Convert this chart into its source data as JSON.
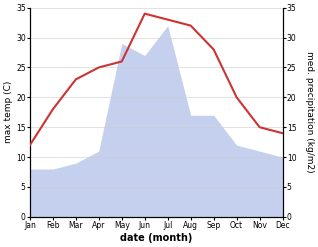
{
  "months": [
    "Jan",
    "Feb",
    "Mar",
    "Apr",
    "May",
    "Jun",
    "Jul",
    "Aug",
    "Sep",
    "Oct",
    "Nov",
    "Dec"
  ],
  "temperature": [
    12,
    18,
    23,
    25,
    26,
    34,
    33,
    32,
    28,
    20,
    15,
    14
  ],
  "precipitation": [
    8,
    8,
    9,
    11,
    29,
    27,
    32,
    17,
    17,
    12,
    11,
    10
  ],
  "temp_color": "#cc3333",
  "precip_color": "#c5d0ee",
  "left_ylabel": "max temp (C)",
  "right_ylabel": "med. precipitation (kg/m2)",
  "xlabel": "date (month)",
  "ylim_left": [
    0,
    35
  ],
  "ylim_right": [
    0,
    35
  ],
  "yticks": [
    0,
    5,
    10,
    15,
    20,
    25,
    30,
    35
  ],
  "background_color": "#ffffff",
  "grid_color": "#cccccc",
  "title_fontsize": 7,
  "label_fontsize": 6.5,
  "tick_fontsize": 5.5
}
